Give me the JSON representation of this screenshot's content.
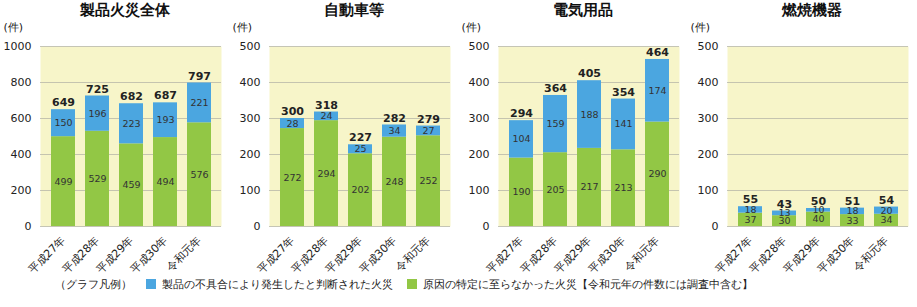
{
  "legend_title": "（グラフ凡例）",
  "chart_data": [
    {
      "type": "bar",
      "title": "製品火災全体",
      "y_label": "(件)",
      "categories": [
        "平成27年",
        "平成28年",
        "平成29年",
        "平成30年",
        "令和元年"
      ],
      "series": [
        {
          "name": "製品の不具合により発生したと判断された火災",
          "color": "#4ba6e0",
          "values": [
            150,
            196,
            223,
            193,
            221
          ]
        },
        {
          "name": "原因の特定に至らなかった火災【令和元年の件数には調査中含む】",
          "color": "#92c745",
          "values": [
            499,
            529,
            459,
            494,
            576
          ]
        }
      ],
      "totals": [
        649,
        725,
        682,
        687,
        797
      ],
      "ylim": [
        0,
        1000
      ],
      "yticks": [
        0,
        200,
        400,
        600,
        800,
        1000
      ],
      "stacked": true,
      "data_labels": true,
      "grid": true
    },
    {
      "type": "bar",
      "title": "自動車等",
      "y_label": "(件)",
      "categories": [
        "平成27年",
        "平成28年",
        "平成29年",
        "平成30年",
        "令和元年"
      ],
      "series": [
        {
          "name": "製品の不具合により発生したと判断された火災",
          "color": "#4ba6e0",
          "values": [
            28,
            24,
            25,
            34,
            27
          ]
        },
        {
          "name": "原因の特定に至らなかった火災【令和元年の件数には調査中含む】",
          "color": "#92c745",
          "values": [
            272,
            294,
            202,
            248,
            252
          ]
        }
      ],
      "totals": [
        300,
        318,
        227,
        282,
        279
      ],
      "ylim": [
        0,
        500
      ],
      "yticks": [
        0,
        100,
        200,
        300,
        400,
        500
      ],
      "stacked": true,
      "data_labels": true,
      "grid": true
    },
    {
      "type": "bar",
      "title": "電気用品",
      "y_label": "(件)",
      "categories": [
        "平成27年",
        "平成28年",
        "平成29年",
        "平成30年",
        "令和元年"
      ],
      "series": [
        {
          "name": "製品の不具合により発生したと判断された火災",
          "color": "#4ba6e0",
          "values": [
            104,
            159,
            188,
            141,
            174
          ]
        },
        {
          "name": "原因の特定に至らなかった火災【令和元年の件数には調査中含む】",
          "color": "#92c745",
          "values": [
            190,
            205,
            217,
            213,
            290
          ]
        }
      ],
      "totals": [
        294,
        364,
        405,
        354,
        464
      ],
      "ylim": [
        0,
        500
      ],
      "yticks": [
        0,
        100,
        200,
        300,
        400,
        500
      ],
      "stacked": true,
      "data_labels": true,
      "grid": true
    },
    {
      "type": "bar",
      "title": "燃焼機器",
      "y_label": "(件)",
      "categories": [
        "平成27年",
        "平成28年",
        "平成29年",
        "平成30年",
        "令和元年"
      ],
      "series": [
        {
          "name": "製品の不具合により発生したと判断された火災",
          "color": "#4ba6e0",
          "values": [
            18,
            13,
            10,
            18,
            20
          ]
        },
        {
          "name": "原因の特定に至らなかった火災【令和元年の件数には調査中含む】",
          "color": "#92c745",
          "values": [
            37,
            30,
            40,
            33,
            34
          ]
        }
      ],
      "totals": [
        55,
        43,
        50,
        51,
        54
      ],
      "ylim": [
        0,
        500
      ],
      "yticks": [
        0,
        100,
        200,
        300,
        400,
        500
      ],
      "stacked": true,
      "data_labels": true,
      "grid": true
    }
  ]
}
